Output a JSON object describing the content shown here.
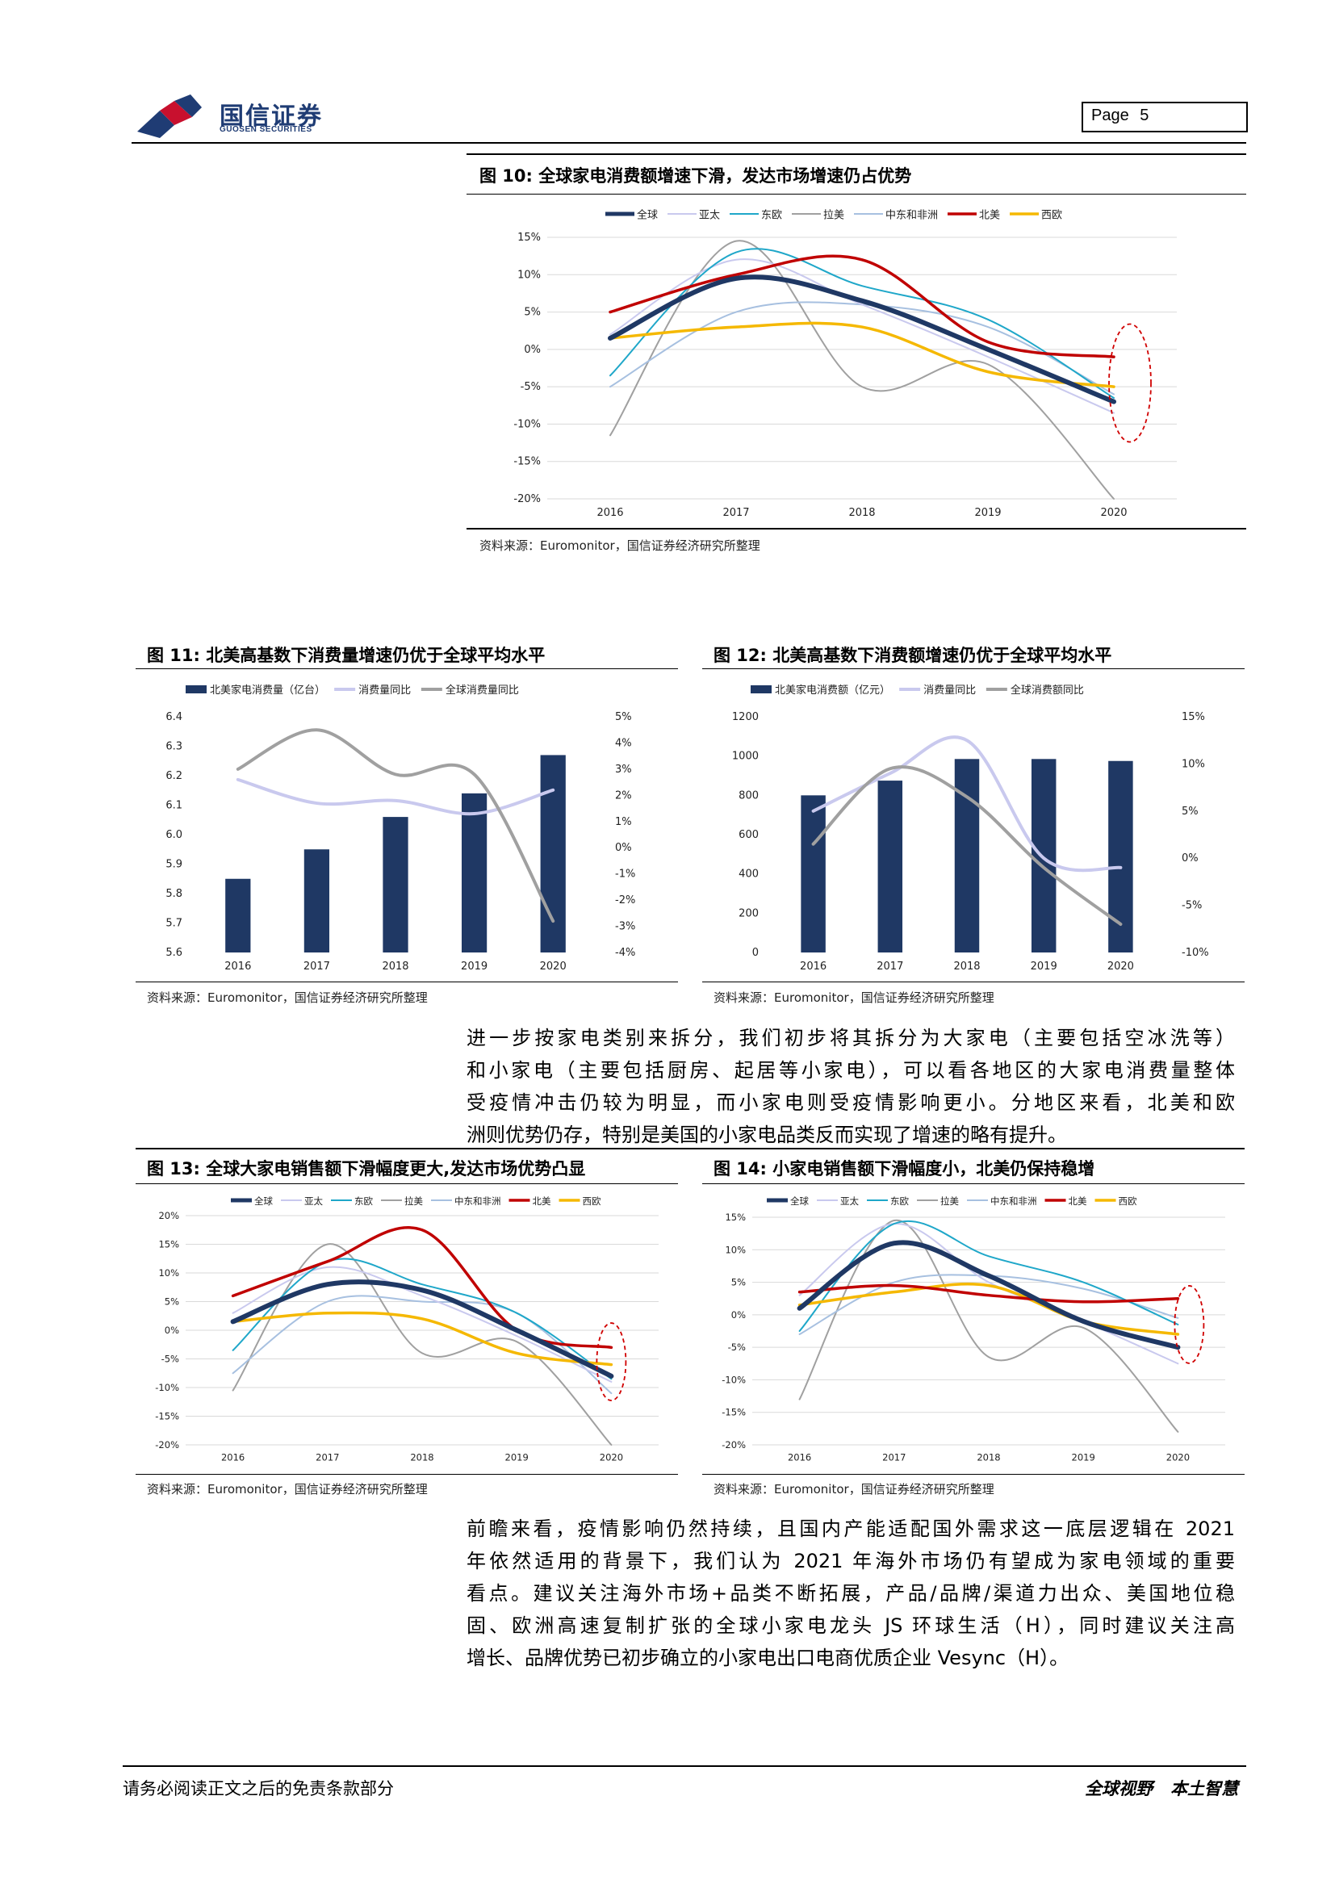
{
  "header": {
    "logo_name": "国信证券",
    "logo_sub": "GUOSEN SECURITIES",
    "page_label": "Page",
    "page_number": "5"
  },
  "fig10": {
    "title": "图 10:  全球家电消费额增速下滑，发达市场增速仍占优势",
    "source": "资料来源：Euromonitor，国信证券经济研究所整理"
  },
  "fig11": {
    "title": "图 11:  北美高基数下消费量增速仍优于全球平均水平",
    "source": "资料来源：Euromonitor，国信证券经济研究所整理"
  },
  "fig12": {
    "title": "图 12:  北美高基数下消费额增速仍优于全球平均水平",
    "source": "资料来源：Euromonitor，国信证券经济研究所整理"
  },
  "fig13": {
    "title": "图 13: 全球大家电销售额下滑幅度更大,发达市场优势凸显",
    "source": "资料来源：Euromonitor，国信证券经济研究所整理"
  },
  "fig14": {
    "title": "图 14:  小家电销售额下滑幅度小，北美仍保持稳增",
    "source": "资料来源：Euromonitor，国信证券经济研究所整理"
  },
  "body": {
    "para1": [
      "进一步按家电类别来拆分，我们初步将其拆分为大家电（主要包括空冰洗等）",
      "和小家电（主要包括厨房、起居等小家电），可以看各地区的大家电消费量整体",
      "受疫情冲击仍较为明显，而小家电则受疫情影响更小。分地区来看，北美和欧",
      "洲则优势仍存，特别是美国的小家电品类反而实现了增速的略有提升。"
    ],
    "para2": [
      "前瞻来看，疫情影响仍然持续，且国内产能适配国外需求这一底层逻辑在 2021",
      "年依然适用的背景下，我们认为 2021 年海外市场仍有望成为家电领域的重要",
      "看点。建议关注海外市场+品类不断拓展，产品/品牌/渠道力出众、美国地位稳",
      "固、欧洲高速复制扩张的全球小家电龙头 JS 环球生活（H），同时建议关注高",
      "增长、品牌优势已初步确立的小家电出口电商优质企业 Vesync（H）。"
    ]
  },
  "footer": {
    "left": "请务必阅读正文之后的免责条款部分",
    "right": "全球视野   本土智慧"
  },
  "colors": {
    "navy": "#1f3864",
    "asia": "#c9c9ee",
    "east_europe": "#1fa7c9",
    "latam": "#a0a0a0",
    "mea": "#a7c0e0",
    "north_america": "#c00000",
    "west_europe": "#f5b800",
    "highlight_circle": "#d00000"
  },
  "chart_data": [
    {
      "id": "fig10",
      "type": "line",
      "x": [
        "2016",
        "2017",
        "2018",
        "2019",
        "2020"
      ],
      "ylim": [
        -20,
        15
      ],
      "yticks": [
        "15%",
        "10%",
        "5%",
        "0%",
        "-5%",
        "-10%",
        "-15%",
        "-20%"
      ],
      "series": [
        {
          "name": "全球",
          "values": [
            1.5,
            9.5,
            6.5,
            0,
            -7
          ]
        },
        {
          "name": "亚太",
          "values": [
            2,
            12,
            6,
            -1,
            -8.5
          ]
        },
        {
          "name": "东欧",
          "values": [
            -3.5,
            13,
            8.5,
            4,
            -6.5
          ]
        },
        {
          "name": "拉美",
          "values": [
            -11.5,
            14.5,
            -5,
            -2,
            -20
          ]
        },
        {
          "name": "中东和非洲",
          "values": [
            -5,
            5,
            6,
            3,
            -6
          ]
        },
        {
          "name": "北美",
          "values": [
            5,
            10,
            12,
            1,
            -1
          ]
        },
        {
          "name": "西欧",
          "values": [
            1.5,
            3,
            3,
            -3,
            -5
          ]
        }
      ]
    },
    {
      "id": "fig11",
      "type": "bar+line",
      "x": [
        "2016",
        "2017",
        "2018",
        "2019",
        "2020"
      ],
      "ylim": [
        5.6,
        6.4
      ],
      "y2lim": [
        -4,
        5
      ],
      "yticks": [
        "6.4",
        "6.3",
        "6.2",
        "6.1",
        "6.0",
        "5.9",
        "5.8",
        "5.7",
        "5.6"
      ],
      "y2ticks": [
        "5%",
        "4%",
        "3%",
        "2%",
        "1%",
        "0%",
        "-1%",
        "-2%",
        "-3%",
        "-4%"
      ],
      "series": [
        {
          "name": "北美家电消费量（亿台）",
          "axis": "left",
          "kind": "bar",
          "values": [
            5.85,
            5.95,
            6.06,
            6.14,
            6.27
          ]
        },
        {
          "name": "消费量同比",
          "axis": "right",
          "kind": "line",
          "values": [
            2.6,
            1.7,
            1.8,
            1.3,
            2.2
          ]
        },
        {
          "name": "全球消费量同比",
          "axis": "right",
          "kind": "line",
          "values": [
            3.0,
            4.5,
            2.8,
            2.8,
            -2.8
          ]
        }
      ]
    },
    {
      "id": "fig12",
      "type": "bar+line",
      "x": [
        "2016",
        "2017",
        "2018",
        "2019",
        "2020"
      ],
      "ylim": [
        0,
        1200
      ],
      "y2lim": [
        -10,
        15
      ],
      "yticks": [
        "1200",
        "1000",
        "800",
        "600",
        "400",
        "200",
        "0"
      ],
      "y2ticks": [
        "15%",
        "10%",
        "5%",
        "0%",
        "-5%",
        "-10%"
      ],
      "series": [
        {
          "name": "北美家电消费额（亿元）",
          "axis": "left",
          "kind": "bar",
          "values": [
            800,
            875,
            985,
            985,
            975
          ]
        },
        {
          "name": "消费量同比",
          "axis": "right",
          "kind": "line",
          "values": [
            5,
            9,
            12.5,
            0,
            -1
          ]
        },
        {
          "name": "全球消费额同比",
          "axis": "right",
          "kind": "line",
          "values": [
            1.5,
            9.5,
            6.5,
            -1,
            -7
          ]
        }
      ]
    },
    {
      "id": "fig13",
      "type": "line",
      "x": [
        "2016",
        "2017",
        "2018",
        "2019",
        "2020"
      ],
      "ylim": [
        -20,
        20
      ],
      "yticks": [
        "20%",
        "15%",
        "10%",
        "5%",
        "0%",
        "-5%",
        "-10%",
        "-15%",
        "-20%"
      ],
      "series": [
        {
          "name": "全球",
          "values": [
            1.5,
            8,
            7,
            0,
            -8
          ]
        },
        {
          "name": "亚太",
          "values": [
            3,
            11,
            6,
            -1,
            -9
          ]
        },
        {
          "name": "东欧",
          "values": [
            -3.5,
            12,
            8,
            3,
            -8.5
          ]
        },
        {
          "name": "拉美",
          "values": [
            -10.5,
            15,
            -4,
            -2,
            -20
          ]
        },
        {
          "name": "中东和非洲",
          "values": [
            -7.5,
            5,
            5,
            3,
            -11
          ]
        },
        {
          "name": "北美",
          "values": [
            6,
            12,
            17.5,
            0,
            -3
          ]
        },
        {
          "name": "西欧",
          "values": [
            1.5,
            3,
            2,
            -4,
            -6
          ]
        }
      ]
    },
    {
      "id": "fig14",
      "type": "line",
      "x": [
        "2016",
        "2017",
        "2018",
        "2019",
        "2020"
      ],
      "ylim": [
        -20,
        15
      ],
      "yticks": [
        "15%",
        "10%",
        "5%",
        "0%",
        "-5%",
        "-10%",
        "-15%",
        "-20%"
      ],
      "series": [
        {
          "name": "全球",
          "values": [
            1,
            11,
            6,
            -1,
            -5
          ]
        },
        {
          "name": "亚太",
          "values": [
            3,
            14,
            5,
            -1,
            -7.5
          ]
        },
        {
          "name": "东欧",
          "values": [
            -2.5,
            14,
            9,
            5,
            -1.5
          ]
        },
        {
          "name": "拉美",
          "values": [
            -13,
            14.5,
            -6.5,
            -2,
            -18
          ]
        },
        {
          "name": "中东和非洲",
          "values": [
            -3,
            5,
            6,
            4,
            -0.5
          ]
        },
        {
          "name": "北美",
          "values": [
            3.5,
            4.5,
            3,
            2,
            2.5
          ]
        },
        {
          "name": "西欧",
          "values": [
            1.5,
            3.5,
            4.5,
            -1,
            -3
          ]
        }
      ]
    }
  ]
}
